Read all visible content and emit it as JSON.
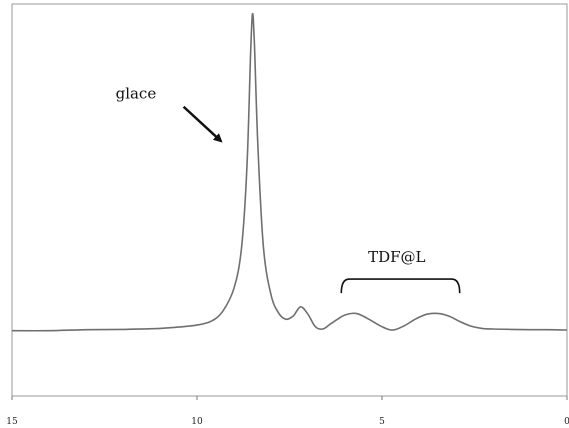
{
  "chart_data": {
    "type": "line",
    "title": "",
    "xlabel": "",
    "ylabel": "",
    "x_reversed": true,
    "xlim": [
      15,
      0
    ],
    "ylim": [
      -0.2,
      1.0
    ],
    "x_ticks": [
      15,
      10,
      5,
      0
    ],
    "x_tick_labels": [
      "15",
      "10",
      "5",
      "0"
    ],
    "y_ticks": [],
    "grid": false,
    "legend": "none",
    "line_color": "#6f6f6f",
    "series": [
      {
        "points": [
          [
            15.0,
            0.0
          ],
          [
            14.0,
            0.0
          ],
          [
            13.0,
            0.003
          ],
          [
            12.0,
            0.004
          ],
          [
            11.0,
            0.007
          ],
          [
            10.5,
            0.011
          ],
          [
            10.0,
            0.017
          ],
          [
            9.6,
            0.03
          ],
          [
            9.3,
            0.06
          ],
          [
            9.0,
            0.13
          ],
          [
            8.8,
            0.25
          ],
          [
            8.65,
            0.5
          ],
          [
            8.55,
            0.85
          ],
          [
            8.5,
            0.97
          ],
          [
            8.45,
            0.88
          ],
          [
            8.35,
            0.55
          ],
          [
            8.2,
            0.25
          ],
          [
            8.0,
            0.11
          ],
          [
            7.8,
            0.055
          ],
          [
            7.6,
            0.035
          ],
          [
            7.4,
            0.045
          ],
          [
            7.2,
            0.073
          ],
          [
            7.0,
            0.05
          ],
          [
            6.8,
            0.012
          ],
          [
            6.6,
            0.005
          ],
          [
            6.4,
            0.02
          ],
          [
            6.2,
            0.035
          ],
          [
            6.0,
            0.048
          ],
          [
            5.7,
            0.053
          ],
          [
            5.4,
            0.038
          ],
          [
            5.0,
            0.012
          ],
          [
            4.7,
            0.002
          ],
          [
            4.4,
            0.015
          ],
          [
            4.1,
            0.035
          ],
          [
            3.8,
            0.05
          ],
          [
            3.5,
            0.053
          ],
          [
            3.2,
            0.045
          ],
          [
            2.9,
            0.028
          ],
          [
            2.6,
            0.014
          ],
          [
            2.3,
            0.007
          ],
          [
            2.0,
            0.005
          ],
          [
            1.5,
            0.004
          ],
          [
            1.0,
            0.003
          ],
          [
            0.5,
            0.003
          ],
          [
            0.0,
            0.002
          ]
        ]
      }
    ],
    "annotations": [
      {
        "text": "glace",
        "x": 12.2,
        "y": 0.71,
        "arrow_to": [
          9.35,
          0.58
        ]
      },
      {
        "text": "TDF@L",
        "x": 4.6,
        "y": 0.21,
        "bracket_from": 6.1,
        "bracket_to": 2.9
      }
    ]
  }
}
